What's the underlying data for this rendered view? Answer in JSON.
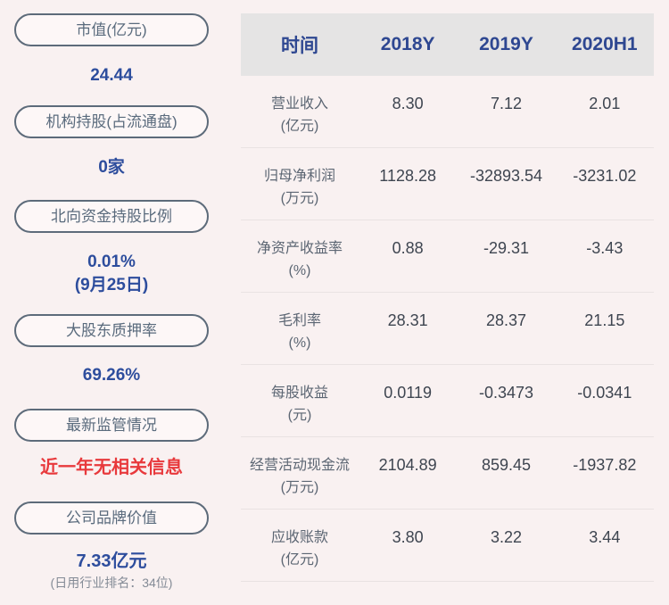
{
  "colors": {
    "page_bg": "#f9f1f1",
    "header_bg": "#e5e4e4",
    "accent_blue": "#2d4d9d",
    "header_blue": "#2e4791",
    "alert_red": "#e8393c",
    "pill_border": "#5d6b7a"
  },
  "sidebar": {
    "items": [
      {
        "id": "market-cap",
        "label": "市值(亿元)",
        "value": "24.44"
      },
      {
        "id": "institutional-holdings",
        "label": "机构持股(占流通盘)",
        "value": "0家"
      },
      {
        "id": "northbound-holding-ratio",
        "label": "北向资金持股比例",
        "value": "0.01%",
        "value_line2": "(9月25日)"
      },
      {
        "id": "major-shareholder-pledge-ratio",
        "label": "大股东质押率",
        "value": "69.26%"
      },
      {
        "id": "latest-regulatory-status",
        "label": "最新监管情况",
        "value": "近一年无相关信息"
      },
      {
        "id": "company-brand-value",
        "label": "公司品牌价值",
        "value": "7.33亿元",
        "caption": "(日用行业排名：34位)"
      }
    ]
  },
  "table": {
    "header": {
      "time_label": "时间",
      "columns": [
        "2018Y",
        "2019Y",
        "2020H1"
      ]
    },
    "rows": [
      {
        "name": "营业收入",
        "unit": "(亿元)",
        "values": [
          "8.30",
          "7.12",
          "2.01"
        ]
      },
      {
        "name": "归母净利润",
        "unit": "(万元)",
        "values": [
          "1128.28",
          "-32893.54",
          "-3231.02"
        ]
      },
      {
        "name": "净资产收益率",
        "unit": "(%)",
        "values": [
          "0.88",
          "-29.31",
          "-3.43"
        ]
      },
      {
        "name": "毛利率",
        "unit": "(%)",
        "values": [
          "28.31",
          "28.37",
          "21.15"
        ]
      },
      {
        "name": "每股收益",
        "unit": "(元)",
        "values": [
          "0.0119",
          "-0.3473",
          "-0.0341"
        ]
      },
      {
        "name": "经营活动现金流",
        "unit": "(万元)",
        "values": [
          "2104.89",
          "859.45",
          "-1937.82"
        ]
      },
      {
        "name": "应收账款",
        "unit": "(亿元)",
        "values": [
          "3.80",
          "3.22",
          "3.44"
        ]
      }
    ]
  }
}
